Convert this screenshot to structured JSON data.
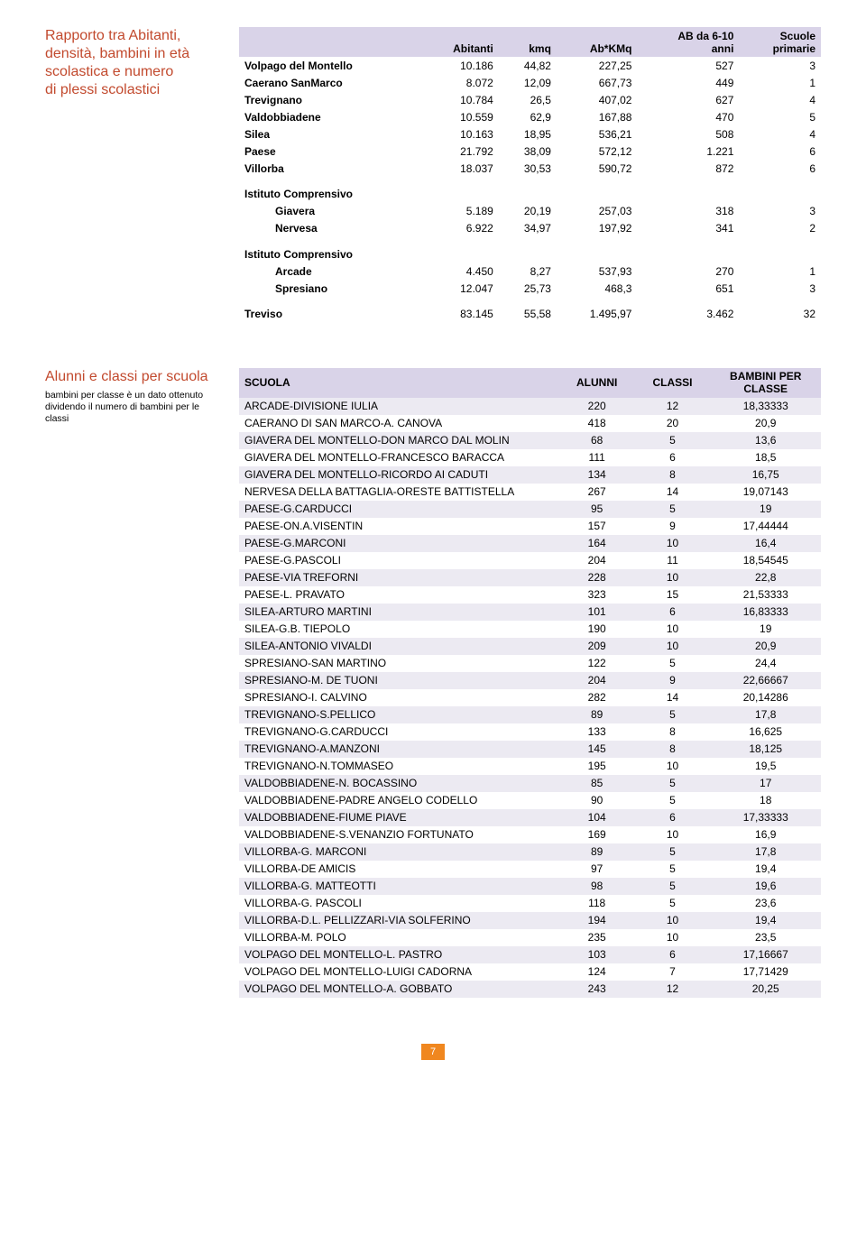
{
  "colors": {
    "title_color": "#c24a2e",
    "header_bg": "#d9d3e8",
    "zebra_bg": "#eceaf2",
    "pagenum_bg": "#f0871f"
  },
  "section1": {
    "title_lines": [
      "Rapporto tra Abitanti,",
      "densità, bambini in età",
      "scolastica e numero",
      "di plessi scolastici"
    ],
    "headers": [
      "",
      "Abitanti",
      "kmq",
      "Ab*KMq",
      "AB da 6-10\nanni",
      "Scuole\nprimarie"
    ],
    "rows": [
      {
        "label": "Volpago del Montello",
        "vals": [
          "10.186",
          "44,82",
          "227,25",
          "527",
          "3"
        ]
      },
      {
        "label": "Caerano SanMarco",
        "vals": [
          "8.072",
          "12,09",
          "667,73",
          "449",
          "1"
        ]
      },
      {
        "label": "Trevignano",
        "vals": [
          "10.784",
          "26,5",
          "407,02",
          "627",
          "4"
        ]
      },
      {
        "label": "Valdobbiadene",
        "vals": [
          "10.559",
          "62,9",
          "167,88",
          "470",
          "5"
        ]
      },
      {
        "label": "Silea",
        "vals": [
          "10.163",
          "18,95",
          "536,21",
          "508",
          "4"
        ]
      },
      {
        "label": "Paese",
        "vals": [
          "21.792",
          "38,09",
          "572,12",
          "1.221",
          "6"
        ]
      },
      {
        "label": "Villorba",
        "vals": [
          "18.037",
          "30,53",
          "590,72",
          "872",
          "6"
        ]
      }
    ],
    "group1": {
      "title": "Istituto Comprensivo",
      "rows": [
        {
          "label": "Giavera",
          "vals": [
            "5.189",
            "20,19",
            "257,03",
            "318",
            "3"
          ]
        },
        {
          "label": "Nervesa",
          "vals": [
            "6.922",
            "34,97",
            "197,92",
            "341",
            "2"
          ]
        }
      ]
    },
    "group2": {
      "title": "Istituto Comprensivo",
      "rows": [
        {
          "label": "Arcade",
          "vals": [
            "4.450",
            "8,27",
            "537,93",
            "270",
            "1"
          ]
        },
        {
          "label": "Spresiano",
          "vals": [
            "12.047",
            "25,73",
            "468,3",
            "651",
            "3"
          ]
        }
      ]
    },
    "total": {
      "label": "Treviso",
      "vals": [
        "83.145",
        "55,58",
        "1.495,97",
        "3.462",
        "32"
      ]
    }
  },
  "section2": {
    "title": "Alunni e classi per scuola",
    "subtitle": "bambini per classe è un dato ottenuto dividendo il numero di bambini per le classi",
    "headers": [
      "SCUOLA",
      "ALUNNI",
      "CLASSI",
      "BAMBINI PER\nCLASSE"
    ],
    "rows": [
      [
        "ARCADE-DIVISIONE IULIA",
        "220",
        "12",
        "18,33333"
      ],
      [
        "CAERANO DI SAN MARCO-A. CANOVA",
        "418",
        "20",
        "20,9"
      ],
      [
        "GIAVERA DEL MONTELLO-DON MARCO DAL MOLIN",
        "68",
        "5",
        "13,6"
      ],
      [
        "GIAVERA DEL MONTELLO-FRANCESCO BARACCA",
        "111",
        "6",
        "18,5"
      ],
      [
        "GIAVERA DEL MONTELLO-RICORDO AI CADUTI",
        "134",
        "8",
        "16,75"
      ],
      [
        "NERVESA DELLA BATTAGLIA-ORESTE BATTISTELLA",
        "267",
        "14",
        "19,07143"
      ],
      [
        "PAESE-G.CARDUCCI",
        "95",
        "5",
        "19"
      ],
      [
        "PAESE-ON.A.VISENTIN",
        "157",
        "9",
        "17,44444"
      ],
      [
        "PAESE-G.MARCONI",
        "164",
        "10",
        "16,4"
      ],
      [
        "PAESE-G.PASCOLI",
        "204",
        "11",
        "18,54545"
      ],
      [
        "PAESE-VIA TREFORNI",
        "228",
        "10",
        "22,8"
      ],
      [
        "PAESE-L. PRAVATO",
        "323",
        "15",
        "21,53333"
      ],
      [
        "SILEA-ARTURO MARTINI",
        "101",
        "6",
        "16,83333"
      ],
      [
        "SILEA-G.B. TIEPOLO",
        "190",
        "10",
        "19"
      ],
      [
        "SILEA-ANTONIO VIVALDI",
        "209",
        "10",
        "20,9"
      ],
      [
        "SPRESIANO-SAN MARTINO",
        "122",
        "5",
        "24,4"
      ],
      [
        "SPRESIANO-M. DE TUONI",
        "204",
        "9",
        "22,66667"
      ],
      [
        "SPRESIANO-I. CALVINO",
        "282",
        "14",
        "20,14286"
      ],
      [
        "TREVIGNANO-S.PELLICO",
        "89",
        "5",
        "17,8"
      ],
      [
        "TREVIGNANO-G.CARDUCCI",
        "133",
        "8",
        "16,625"
      ],
      [
        "TREVIGNANO-A.MANZONI",
        "145",
        "8",
        "18,125"
      ],
      [
        "TREVIGNANO-N.TOMMASEO",
        "195",
        "10",
        "19,5"
      ],
      [
        "VALDOBBIADENE-N. BOCASSINO",
        "85",
        "5",
        "17"
      ],
      [
        "VALDOBBIADENE-PADRE ANGELO CODELLO",
        "90",
        "5",
        "18"
      ],
      [
        "VALDOBBIADENE-FIUME PIAVE",
        "104",
        "6",
        "17,33333"
      ],
      [
        "VALDOBBIADENE-S.VENANZIO FORTUNATO",
        "169",
        "10",
        "16,9"
      ],
      [
        "VILLORBA-G. MARCONI",
        "89",
        "5",
        "17,8"
      ],
      [
        "VILLORBA-DE AMICIS",
        "97",
        "5",
        "19,4"
      ],
      [
        "VILLORBA-G. MATTEOTTI",
        "98",
        "5",
        "19,6"
      ],
      [
        "VILLORBA-G. PASCOLI",
        "118",
        "5",
        "23,6"
      ],
      [
        "VILLORBA-D.L. PELLIZZARI-VIA SOLFERINO",
        "194",
        "10",
        "19,4"
      ],
      [
        "VILLORBA-M. POLO",
        "235",
        "10",
        "23,5"
      ],
      [
        "VOLPAGO DEL MONTELLO-L. PASTRO",
        "103",
        "6",
        "17,16667"
      ],
      [
        "VOLPAGO DEL MONTELLO-LUIGI CADORNA",
        "124",
        "7",
        "17,71429"
      ],
      [
        "VOLPAGO DEL MONTELLO-A. GOBBATO",
        "243",
        "12",
        "20,25"
      ]
    ]
  },
  "page_number": "7"
}
